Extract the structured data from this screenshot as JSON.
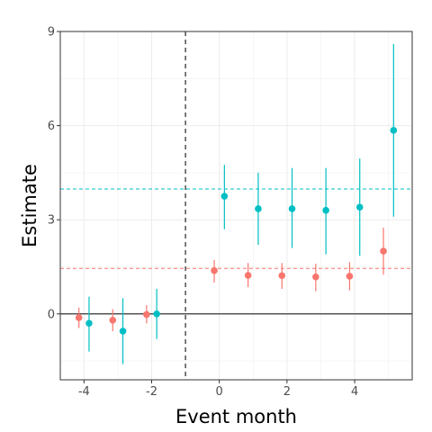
{
  "chart_data": {
    "type": "scatter",
    "xlabel": "Event month",
    "ylabel": "Estimate",
    "xlim": [
      -4.7,
      5.7
    ],
    "ylim": [
      -2.1,
      9.0
    ],
    "x_ticks": [
      -4,
      -2,
      0,
      2,
      4
    ],
    "x_tick_labels": [
      "-4",
      "-2",
      "0",
      "2",
      "4"
    ],
    "y_ticks": [
      0,
      3,
      6,
      9
    ],
    "y_tick_labels": [
      "0",
      "3",
      "6",
      "9"
    ],
    "grid": true,
    "legend": "none",
    "event_line_x": -1,
    "zero_line_y": 0,
    "series": [
      {
        "color": "#F8766D",
        "x": [
          -4.15,
          -3.15,
          -2.15,
          -0.15,
          0.85,
          1.85,
          2.85,
          3.85,
          4.85
        ],
        "y": [
          -0.12,
          -0.2,
          -0.02,
          1.38,
          1.23,
          1.22,
          1.18,
          1.2,
          2.0
        ],
        "ci_low": [
          -0.45,
          -0.55,
          -0.3,
          1.0,
          0.85,
          0.8,
          0.72,
          0.75,
          1.25
        ],
        "ci_high": [
          0.2,
          0.15,
          0.28,
          1.72,
          1.62,
          1.62,
          1.6,
          1.65,
          2.75
        ],
        "reference_mean": 1.45
      },
      {
        "color": "#00BFC4",
        "x": [
          -3.85,
          -2.85,
          -1.85,
          0.15,
          1.15,
          2.15,
          3.15,
          4.15,
          5.15
        ],
        "y": [
          -0.3,
          -0.55,
          0.0,
          3.75,
          3.35,
          3.35,
          3.3,
          3.4,
          5.85
        ],
        "ci_low": [
          -1.2,
          -1.6,
          -0.8,
          2.7,
          2.2,
          2.1,
          1.9,
          1.85,
          3.1
        ],
        "ci_high": [
          0.55,
          0.5,
          0.8,
          4.75,
          4.5,
          4.65,
          4.65,
          4.95,
          8.6
        ],
        "reference_mean": 3.98
      }
    ]
  }
}
